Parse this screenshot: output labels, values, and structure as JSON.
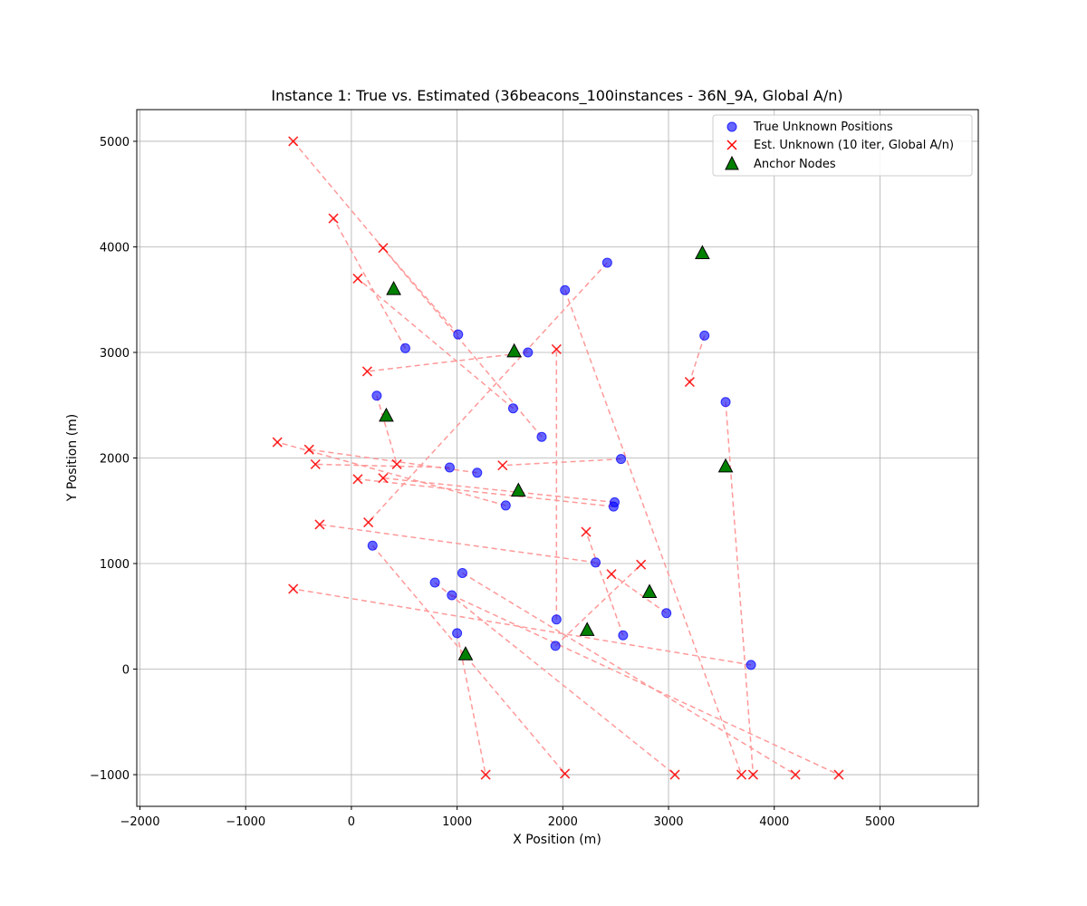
{
  "chart_data": {
    "type": "scatter",
    "title": "Instance 1: True vs. Estimated (36beacons_100instances - 36N_9A, Global A/n)",
    "xlabel": "X Position (m)",
    "ylabel": "Y Position (m)",
    "xlim": [
      -2030,
      5930
    ],
    "ylim": [
      -1300,
      5300
    ],
    "x_ticks": [
      -2000,
      -1000,
      0,
      1000,
      2000,
      3000,
      4000,
      5000
    ],
    "y_ticks": [
      -1000,
      0,
      1000,
      2000,
      3000,
      4000,
      5000
    ],
    "x_tick_labels": [
      "−2000",
      "−1000",
      "0",
      "1000",
      "2000",
      "3000",
      "4000",
      "5000"
    ],
    "y_tick_labels": [
      "−1000",
      "0",
      "1000",
      "2000",
      "3000",
      "4000",
      "5000"
    ],
    "grid": true,
    "legend_position": "top-right",
    "colors": {
      "true": "#0000ff",
      "estimated": "#ff0000",
      "anchor": "#008000",
      "error_line": "#ff9999"
    },
    "series": [
      {
        "name": "True Unknown Positions",
        "marker": "circle"
      },
      {
        "name": "Est. Unknown (10 iter, Global A/n)",
        "marker": "x"
      },
      {
        "name": "Anchor Nodes",
        "marker": "triangle"
      }
    ],
    "pairs": [
      {
        "true": [
          2420,
          3850
        ],
        "est": [
          160,
          1390
        ]
      },
      {
        "true": [
          2020,
          3590
        ],
        "est": [
          3690,
          -1000
        ]
      },
      {
        "true": [
          1010,
          3170
        ],
        "est": [
          300,
          3990
        ]
      },
      {
        "true": [
          510,
          3040
        ],
        "est": [
          -170,
          4270
        ]
      },
      {
        "true": [
          1670,
          3000
        ],
        "est": [
          150,
          2820
        ]
      },
      {
        "true": [
          3340,
          3160
        ],
        "est": [
          3200,
          2720
        ]
      },
      {
        "true": [
          240,
          2590
        ],
        "est": [
          430,
          1940
        ]
      },
      {
        "true": [
          1530,
          2470
        ],
        "est": [
          60,
          3700
        ]
      },
      {
        "true": [
          1800,
          2200
        ],
        "est": [
          -550,
          5000
        ]
      },
      {
        "true": [
          3540,
          2530
        ],
        "est": [
          3800,
          -1000
        ]
      },
      {
        "true": [
          2550,
          1990
        ],
        "est": [
          1430,
          1930
        ]
      },
      {
        "true": [
          930,
          1910
        ],
        "est": [
          -340,
          1940
        ]
      },
      {
        "true": [
          1190,
          1860
        ],
        "est": [
          -400,
          2080
        ]
      },
      {
        "true": [
          1460,
          1550
        ],
        "est": [
          -700,
          2150
        ]
      },
      {
        "true": [
          2490,
          1580
        ],
        "est": [
          300,
          1810
        ]
      },
      {
        "true": [
          2480,
          1540
        ],
        "est": [
          60,
          1800
        ]
      },
      {
        "true": [
          2310,
          1010
        ],
        "est": [
          -300,
          1370
        ]
      },
      {
        "true": [
          200,
          1170
        ],
        "est": [
          2020,
          -990
        ]
      },
      {
        "true": [
          1050,
          910
        ],
        "est": [
          4200,
          -1000
        ]
      },
      {
        "true": [
          790,
          820
        ],
        "est": [
          3060,
          -1000
        ]
      },
      {
        "true": [
          950,
          700
        ],
        "est": [
          4610,
          -1000
        ]
      },
      {
        "true": [
          2980,
          530
        ],
        "est": [
          2460,
          900
        ]
      },
      {
        "true": [
          1940,
          470
        ],
        "est": [
          1940,
          3030
        ]
      },
      {
        "true": [
          2570,
          320
        ],
        "est": [
          2220,
          1300
        ]
      },
      {
        "true": [
          1000,
          340
        ],
        "est": [
          1270,
          -1000
        ]
      },
      {
        "true": [
          1930,
          220
        ],
        "est": [
          2740,
          990
        ]
      },
      {
        "true": [
          3780,
          40
        ],
        "est": [
          -550,
          760
        ]
      }
    ],
    "anchors": [
      [
        3320,
        3940
      ],
      [
        400,
        3600
      ],
      [
        1540,
        3010
      ],
      [
        330,
        2400
      ],
      [
        3540,
        1920
      ],
      [
        1580,
        1690
      ],
      [
        2820,
        730
      ],
      [
        2230,
        370
      ],
      [
        1080,
        140
      ]
    ]
  }
}
